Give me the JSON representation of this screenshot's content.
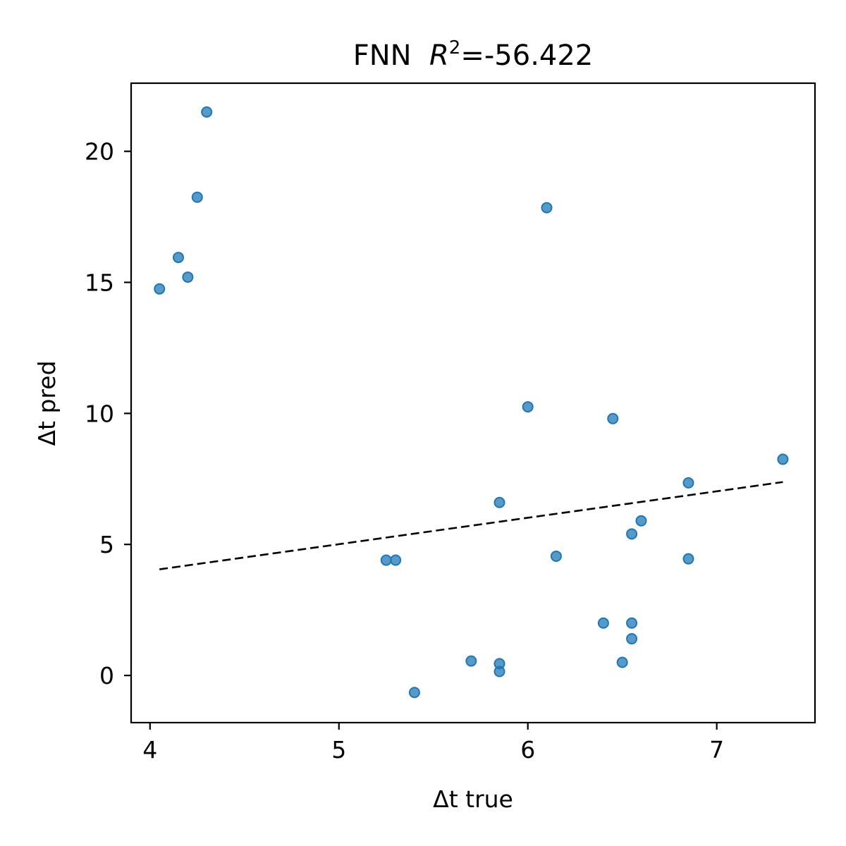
{
  "chart_data": {
    "type": "scatter",
    "title_prefix": "FNN  ",
    "title_r2_symbol": "R",
    "title_r2_exp": "2",
    "title_r2_value": "=-56.422",
    "xlabel": "Δt true",
    "ylabel": "Δt pred",
    "xlim": [
      3.9,
      7.52
    ],
    "ylim": [
      -1.8,
      22.6
    ],
    "xticks": [
      4,
      5,
      6,
      7
    ],
    "xtick_labels": [
      "4",
      "5",
      "6",
      "7"
    ],
    "yticks": [
      0,
      5,
      10,
      15,
      20
    ],
    "ytick_labels": [
      "0",
      "5",
      "10",
      "15",
      "20"
    ],
    "grid": false,
    "point_color": "#1f77b4",
    "points": [
      {
        "x": 4.05,
        "y": 14.75
      },
      {
        "x": 4.15,
        "y": 15.95
      },
      {
        "x": 4.2,
        "y": 15.2
      },
      {
        "x": 4.25,
        "y": 18.25
      },
      {
        "x": 4.3,
        "y": 21.5
      },
      {
        "x": 5.25,
        "y": 4.4
      },
      {
        "x": 5.3,
        "y": 4.4
      },
      {
        "x": 5.4,
        "y": -0.65
      },
      {
        "x": 5.7,
        "y": 0.55
      },
      {
        "x": 5.85,
        "y": 0.45
      },
      {
        "x": 5.85,
        "y": 0.15
      },
      {
        "x": 5.85,
        "y": 6.6
      },
      {
        "x": 6.0,
        "y": 10.25
      },
      {
        "x": 6.1,
        "y": 17.85
      },
      {
        "x": 6.15,
        "y": 4.55
      },
      {
        "x": 6.4,
        "y": 2.0
      },
      {
        "x": 6.45,
        "y": 9.8
      },
      {
        "x": 6.5,
        "y": 0.5
      },
      {
        "x": 6.55,
        "y": 5.4
      },
      {
        "x": 6.55,
        "y": 2.0
      },
      {
        "x": 6.55,
        "y": 1.4
      },
      {
        "x": 6.6,
        "y": 5.9
      },
      {
        "x": 6.85,
        "y": 7.35
      },
      {
        "x": 6.85,
        "y": 4.45
      },
      {
        "x": 7.35,
        "y": 8.25
      }
    ],
    "fit_line": {
      "x": [
        4.05,
        7.35
      ],
      "y": [
        4.05,
        7.38
      ],
      "style": "dashed",
      "color": "#000000"
    }
  }
}
